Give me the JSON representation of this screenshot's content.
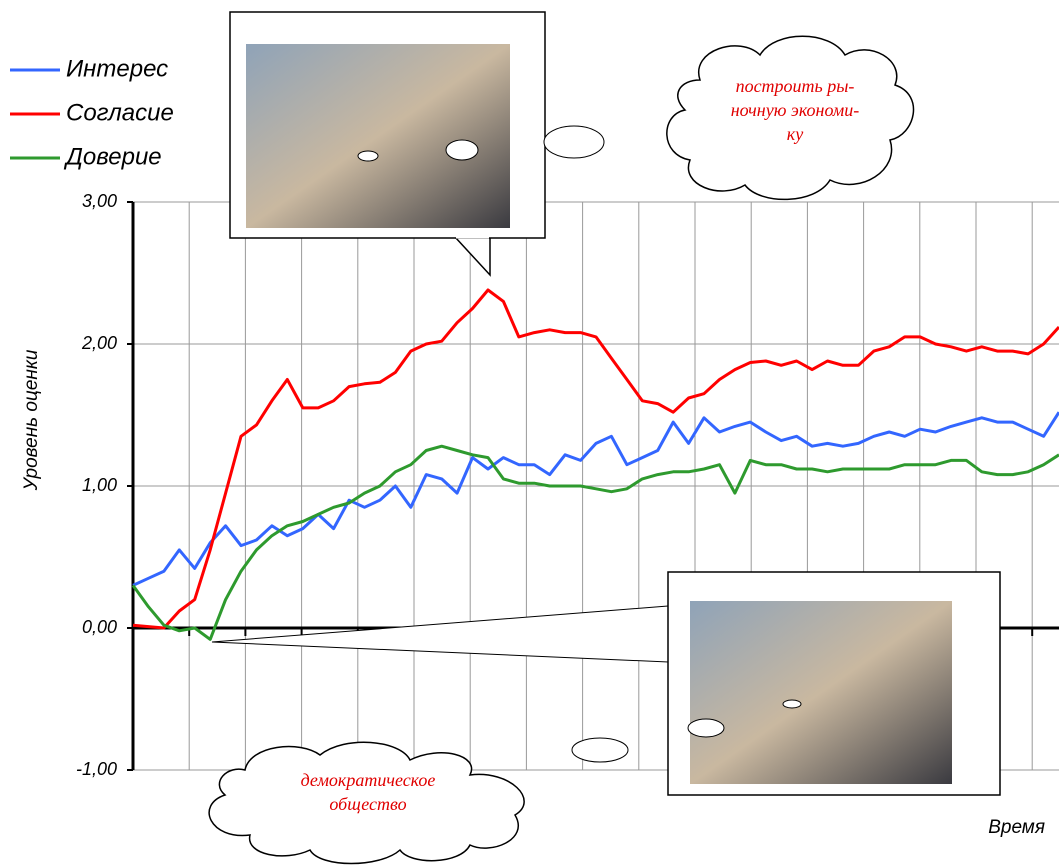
{
  "chart_data": {
    "type": "line",
    "y_label": "Уровень оценки",
    "x_label": "Время",
    "ylim": [
      -1,
      3
    ],
    "yticks": [
      {
        "value": -1,
        "label": "-1,00"
      },
      {
        "value": 0,
        "label": "0,00"
      },
      {
        "value": 1,
        "label": "1,00"
      },
      {
        "value": 2,
        "label": "2,00"
      },
      {
        "value": 3,
        "label": "3,00"
      }
    ],
    "grid": true,
    "series": [
      {
        "name": "Интерес",
        "color": "#3366ff",
        "values": [
          0.3,
          0.35,
          0.4,
          0.55,
          0.42,
          0.6,
          0.72,
          0.58,
          0.62,
          0.72,
          0.65,
          0.7,
          0.8,
          0.7,
          0.9,
          0.85,
          0.9,
          1.0,
          0.85,
          1.08,
          1.05,
          0.95,
          1.2,
          1.12,
          1.2,
          1.15,
          1.15,
          1.08,
          1.22,
          1.18,
          1.3,
          1.35,
          1.15,
          1.2,
          1.25,
          1.45,
          1.3,
          1.48,
          1.38,
          1.42,
          1.45,
          1.38,
          1.32,
          1.35,
          1.28,
          1.3,
          1.28,
          1.3,
          1.35,
          1.38,
          1.35,
          1.4,
          1.38,
          1.42,
          1.45,
          1.48,
          1.45,
          1.45,
          1.4,
          1.35,
          1.52
        ]
      },
      {
        "name": "Согласие",
        "color": "#ff0000",
        "values": [
          0.02,
          0.01,
          0.0,
          0.12,
          0.2,
          0.55,
          0.95,
          1.35,
          1.43,
          1.6,
          1.75,
          1.55,
          1.55,
          1.6,
          1.7,
          1.72,
          1.73,
          1.8,
          1.95,
          2.0,
          2.02,
          2.15,
          2.25,
          2.38,
          2.3,
          2.05,
          2.08,
          2.1,
          2.08,
          2.08,
          2.05,
          1.9,
          1.75,
          1.6,
          1.58,
          1.52,
          1.62,
          1.65,
          1.75,
          1.82,
          1.87,
          1.88,
          1.85,
          1.88,
          1.82,
          1.88,
          1.85,
          1.85,
          1.95,
          1.98,
          2.05,
          2.05,
          2.0,
          1.98,
          1.95,
          1.98,
          1.95,
          1.95,
          1.93,
          2.0,
          2.12
        ]
      },
      {
        "name": "Доверие",
        "color": "#2e9a2e",
        "values": [
          0.3,
          0.15,
          0.02,
          -0.02,
          0.0,
          -0.08,
          0.2,
          0.4,
          0.55,
          0.65,
          0.72,
          0.75,
          0.8,
          0.85,
          0.88,
          0.95,
          1.0,
          1.1,
          1.15,
          1.25,
          1.28,
          1.25,
          1.22,
          1.2,
          1.05,
          1.02,
          1.02,
          1.0,
          1.0,
          1.0,
          0.98,
          0.96,
          0.98,
          1.05,
          1.08,
          1.1,
          1.1,
          1.12,
          1.15,
          0.95,
          1.18,
          1.15,
          1.15,
          1.12,
          1.12,
          1.1,
          1.12,
          1.12,
          1.12,
          1.12,
          1.15,
          1.15,
          1.15,
          1.18,
          1.18,
          1.1,
          1.08,
          1.08,
          1.1,
          1.15,
          1.22
        ]
      }
    ],
    "annotations": [
      {
        "lines": [
          "построить ры-",
          "ночную экономи-",
          "ку"
        ]
      },
      {
        "lines": [
          "демократическое",
          "общество"
        ]
      }
    ]
  }
}
